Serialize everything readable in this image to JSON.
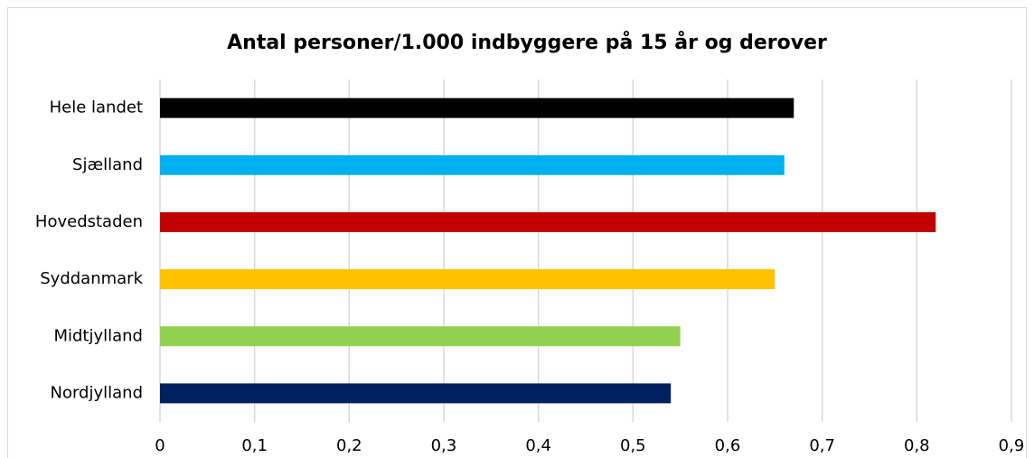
{
  "chart_data": {
    "type": "bar",
    "orientation": "horizontal",
    "title": "Antal personer/1.000 indbyggere på 15 år og derover",
    "categories": [
      "Hele landet",
      "Sjælland",
      "Hovedstaden",
      "Syddanmark",
      "Midtjylland",
      "Nordjylland"
    ],
    "values": [
      0.67,
      0.66,
      0.82,
      0.65,
      0.55,
      0.54
    ],
    "colors": [
      "#000000",
      "#00b0f0",
      "#c00000",
      "#ffc000",
      "#92d050",
      "#002060"
    ],
    "xlim": [
      0,
      0.9
    ],
    "xticks": [
      0,
      {
        "value": 0.1,
        "label": "0,1"
      },
      {
        "value": 0.2,
        "label": "0,2"
      },
      {
        "value": 0.3,
        "label": "0,3"
      },
      {
        "value": 0.4,
        "label": "0,4"
      },
      {
        "value": 0.5,
        "label": "0,5"
      },
      {
        "value": 0.6,
        "label": "0,6"
      },
      {
        "value": 0.7,
        "label": "0,7"
      },
      {
        "value": 0.8,
        "label": "0,8"
      },
      {
        "value": 0.9,
        "label": "0,9"
      }
    ],
    "grid": true
  }
}
